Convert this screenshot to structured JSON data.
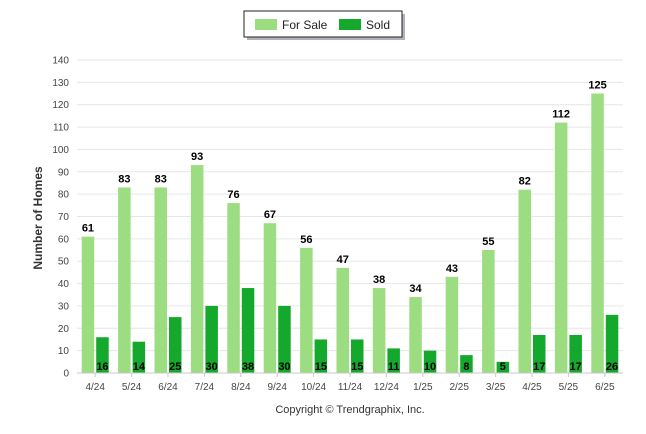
{
  "chart_data": {
    "type": "bar",
    "title": "",
    "xlabel": "",
    "ylabel": "Number of Homes",
    "ylim": [
      0,
      140
    ],
    "yticks": [
      0,
      10,
      20,
      30,
      40,
      50,
      60,
      70,
      80,
      90,
      100,
      110,
      120,
      130,
      140
    ],
    "grid": true,
    "legend_position": "top-center",
    "categories": [
      "4/24",
      "5/24",
      "6/24",
      "7/24",
      "8/24",
      "9/24",
      "10/24",
      "11/24",
      "12/24",
      "1/25",
      "2/25",
      "3/25",
      "4/25",
      "5/25",
      "6/25"
    ],
    "series": [
      {
        "name": "For Sale",
        "color": "#9ddd82",
        "values": [
          61,
          83,
          83,
          93,
          76,
          67,
          56,
          47,
          38,
          34,
          43,
          55,
          82,
          112,
          125
        ]
      },
      {
        "name": "Sold",
        "color": "#14a82c",
        "values": [
          16,
          14,
          25,
          30,
          38,
          30,
          15,
          15,
          11,
          10,
          8,
          5,
          17,
          17,
          26
        ]
      }
    ],
    "footer": "Copyright © Trendgraphix, Inc."
  }
}
